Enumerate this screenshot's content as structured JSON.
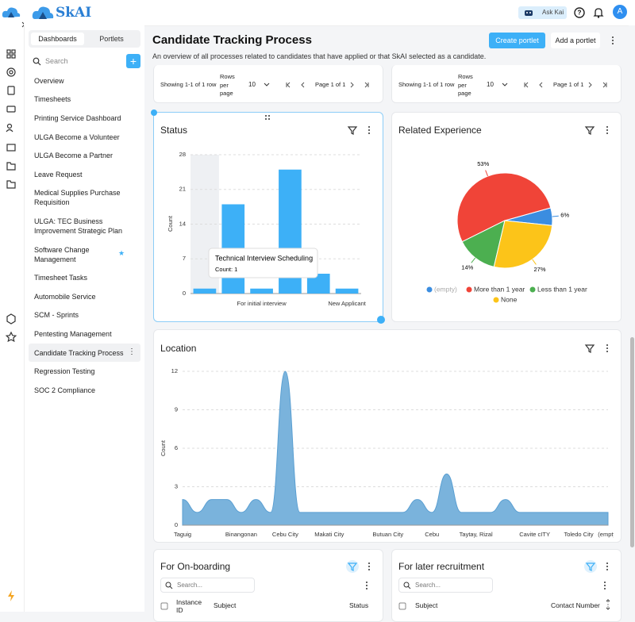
{
  "brand": "SkAI",
  "topbar": {
    "ask": "Ask Kai",
    "avatar": "A"
  },
  "sidebar": {
    "tabs": [
      "Dashboards",
      "Portlets"
    ],
    "search": "Search",
    "items": [
      "Overview",
      "Timesheets",
      "Printing Service Dashboard",
      "ULGA Become a Volunteer",
      "ULGA Become a Partner",
      "Leave Request",
      "Medical Supplies Purchase Requisition",
      "ULGA: TEC Business Improvement Strategic Plan",
      "Software Change Management",
      "Timesheet Tasks",
      "Automobile Service",
      "SCM - Sprints",
      "Pentesting Management",
      "Candidate Tracking Process",
      "Regression Testing",
      "SOC 2 Compliance"
    ]
  },
  "header": {
    "title": "Candidate Tracking Process",
    "subtitle": "An overview of all processes related to candidates that have applied or that SkAI selected as a candidate.",
    "buttons": [
      "Create portlet",
      "Add a portlet"
    ]
  },
  "pagers": [
    {
      "showing": "Showing 1-1 of 1 row",
      "rows_label": "Rows per page",
      "rows": 10,
      "page": "Page 1 of 1"
    },
    {
      "showing": "Showing 1-1 of 1 row",
      "rows_label": "Rows per page",
      "rows": 10,
      "page": "Page 1 of 1"
    }
  ],
  "chart_data": [
    {
      "type": "bar",
      "title": "Status",
      "y_label": "Count",
      "categories": [
        null,
        null,
        "For initial interview",
        null,
        null,
        "New Applicant"
      ],
      "values": [
        1,
        18,
        1,
        25,
        4,
        1
      ],
      "color": "#3db0f7",
      "ylim": [
        0,
        28
      ],
      "yticks": [
        0,
        7,
        14,
        21,
        28
      ],
      "grid": true,
      "tooltip": {
        "title": "Technical Interview Scheduling",
        "text": "Count: 1"
      }
    },
    {
      "type": "pie",
      "title": "Related Experience",
      "categories": [
        "(empty)",
        "More than 1 year",
        "Less than 1 year",
        "None"
      ],
      "values": [
        6,
        53,
        14,
        27
      ],
      "value_labels": [
        "6%",
        "53%",
        "14%",
        "27%"
      ],
      "colors": [
        "#3b8de0",
        "#f04438",
        "#4caf50",
        "#fcc419"
      ]
    },
    {
      "type": "area",
      "title": "Location",
      "y_label": "Count",
      "categories": [
        "Taguig",
        null,
        null,
        null,
        "Binangonan",
        null,
        null,
        "Cebu City",
        null,
        null,
        "Makati City",
        null,
        null,
        null,
        "Butuan City",
        null,
        null,
        "Cebu",
        null,
        null,
        "Taytay, Rizal",
        null,
        null,
        null,
        "Cavite cITY",
        null,
        null,
        "Toledo City",
        null,
        "(empty)"
      ],
      "values": [
        2,
        1,
        2,
        2,
        1,
        2,
        1,
        12,
        1,
        1,
        1,
        1,
        1,
        1,
        1,
        1,
        2,
        1,
        4,
        1,
        1,
        1,
        2,
        1,
        1,
        1,
        1,
        1,
        1,
        1
      ],
      "color": "#7ab3dc",
      "ylim": [
        0,
        12
      ],
      "yticks": [
        0,
        3,
        6,
        9,
        12
      ],
      "grid": true
    }
  ],
  "tables": [
    {
      "title": "For On-boarding",
      "search": "Search...",
      "columns": [
        "Instance ID",
        "Subject",
        "Status"
      ]
    },
    {
      "title": "For later recruitment",
      "search": "Search...",
      "columns": [
        "Subject",
        "Contact Number"
      ]
    }
  ]
}
